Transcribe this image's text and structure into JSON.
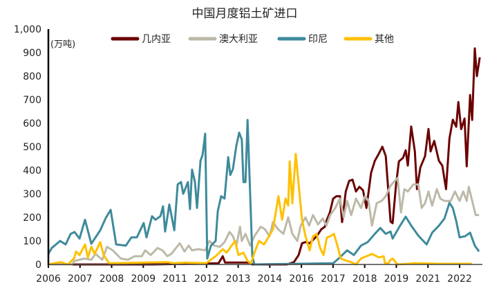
{
  "chart_data": {
    "type": "line",
    "title": "中国月度铝土矿进口",
    "unit_label": "(万吨)",
    "xlabel": "",
    "ylabel": "",
    "xlim": [
      2006.0,
      2022.58
    ],
    "ylim": [
      0,
      1000
    ],
    "y_ticks": [
      "0",
      "100",
      "200",
      "300",
      "400",
      "500",
      "600",
      "700",
      "800",
      "900",
      "1,000"
    ],
    "y_tick_values": [
      0,
      100,
      200,
      300,
      400,
      500,
      600,
      700,
      800,
      900,
      1000
    ],
    "x_tick_labels": [
      "2006",
      "2007",
      "2008",
      "2009",
      "2011",
      "2012",
      "2013",
      "2014",
      "2016",
      "2017",
      "2018",
      "2019",
      "2021",
      "2022"
    ],
    "grid": false,
    "legend_position": "top",
    "series": [
      {
        "name": "几内亚",
        "color": "#6b0000",
        "points": [
          [
            2006.0,
            0
          ],
          [
            2010.0,
            0
          ],
          [
            2012.5,
            5
          ],
          [
            2012.66,
            35
          ],
          [
            2012.75,
            8
          ],
          [
            2013.7,
            8
          ],
          [
            2013.8,
            0
          ],
          [
            2015.11,
            0
          ],
          [
            2015.38,
            10
          ],
          [
            2015.56,
            40
          ],
          [
            2015.69,
            90
          ],
          [
            2015.82,
            95
          ],
          [
            2015.98,
            90
          ],
          [
            2016.25,
            120
          ],
          [
            2016.43,
            150
          ],
          [
            2016.56,
            160
          ],
          [
            2016.64,
            190
          ],
          [
            2016.75,
            220
          ],
          [
            2016.88,
            280
          ],
          [
            2017.01,
            290
          ],
          [
            2017.14,
            290
          ],
          [
            2017.22,
            180
          ],
          [
            2017.36,
            310
          ],
          [
            2017.49,
            355
          ],
          [
            2017.62,
            360
          ],
          [
            2017.75,
            310
          ],
          [
            2017.88,
            330
          ],
          [
            2018.02,
            315
          ],
          [
            2018.15,
            240
          ],
          [
            2018.33,
            390
          ],
          [
            2018.47,
            440
          ],
          [
            2018.62,
            470
          ],
          [
            2018.76,
            500
          ],
          [
            2018.89,
            460
          ],
          [
            2019.07,
            182
          ],
          [
            2019.15,
            175
          ],
          [
            2019.28,
            338
          ],
          [
            2019.39,
            438
          ],
          [
            2019.55,
            453
          ],
          [
            2019.65,
            485
          ],
          [
            2019.73,
            420
          ],
          [
            2019.86,
            586
          ],
          [
            2020.0,
            480
          ],
          [
            2020.08,
            320
          ],
          [
            2020.21,
            412
          ],
          [
            2020.39,
            460
          ],
          [
            2020.52,
            576
          ],
          [
            2020.6,
            480
          ],
          [
            2020.74,
            525
          ],
          [
            2020.92,
            440
          ],
          [
            2021.05,
            420
          ],
          [
            2021.19,
            320
          ],
          [
            2021.32,
            535
          ],
          [
            2021.45,
            615
          ],
          [
            2021.58,
            585
          ],
          [
            2021.66,
            690
          ],
          [
            2021.77,
            575
          ],
          [
            2021.9,
            620
          ],
          [
            2021.98,
            417
          ],
          [
            2022.11,
            720
          ],
          [
            2022.19,
            614
          ],
          [
            2022.29,
            918
          ],
          [
            2022.37,
            800
          ],
          [
            2022.48,
            880
          ]
        ]
      },
      {
        "name": "澳大利亚",
        "color": "#bcb9a8",
        "points": [
          [
            2006.0,
            0
          ],
          [
            2006.9,
            0
          ],
          [
            2007.0,
            15
          ],
          [
            2007.37,
            25
          ],
          [
            2007.64,
            20
          ],
          [
            2007.8,
            45
          ],
          [
            2008.06,
            20
          ],
          [
            2008.24,
            75
          ],
          [
            2008.46,
            60
          ],
          [
            2008.77,
            25
          ],
          [
            2009.04,
            20
          ],
          [
            2009.3,
            35
          ],
          [
            2009.57,
            35
          ],
          [
            2009.7,
            60
          ],
          [
            2009.91,
            40
          ],
          [
            2010.17,
            70
          ],
          [
            2010.36,
            60
          ],
          [
            2010.54,
            35
          ],
          [
            2010.7,
            45
          ],
          [
            2011.02,
            90
          ],
          [
            2011.2,
            55
          ],
          [
            2011.36,
            80
          ],
          [
            2011.49,
            60
          ],
          [
            2011.73,
            65
          ],
          [
            2011.99,
            60
          ],
          [
            2012.15,
            100
          ],
          [
            2012.34,
            80
          ],
          [
            2012.55,
            75
          ],
          [
            2012.73,
            95
          ],
          [
            2012.92,
            138
          ],
          [
            2013.05,
            120
          ],
          [
            2013.18,
            80
          ],
          [
            2013.32,
            160
          ],
          [
            2013.39,
            100
          ],
          [
            2013.53,
            130
          ],
          [
            2013.71,
            80
          ],
          [
            2013.87,
            120
          ],
          [
            2014.11,
            160
          ],
          [
            2014.27,
            150
          ],
          [
            2014.45,
            120
          ],
          [
            2014.58,
            180
          ],
          [
            2014.77,
            150
          ],
          [
            2014.98,
            130
          ],
          [
            2015.16,
            200
          ],
          [
            2015.32,
            130
          ],
          [
            2015.51,
            100
          ],
          [
            2015.64,
            165
          ],
          [
            2015.82,
            200
          ],
          [
            2015.96,
            165
          ],
          [
            2016.11,
            210
          ],
          [
            2016.3,
            170
          ],
          [
            2016.48,
            195
          ],
          [
            2016.62,
            165
          ],
          [
            2016.77,
            210
          ],
          [
            2016.96,
            240
          ],
          [
            2017.14,
            280
          ],
          [
            2017.28,
            200
          ],
          [
            2017.41,
            270
          ],
          [
            2017.57,
            210
          ],
          [
            2017.75,
            280
          ],
          [
            2017.94,
            240
          ],
          [
            2018.1,
            290
          ],
          [
            2018.23,
            270
          ],
          [
            2018.36,
            165
          ],
          [
            2018.54,
            260
          ],
          [
            2018.73,
            270
          ],
          [
            2018.89,
            290
          ],
          [
            2019.07,
            335
          ],
          [
            2019.34,
            368
          ],
          [
            2019.47,
            221
          ],
          [
            2019.6,
            320
          ],
          [
            2019.73,
            310
          ],
          [
            2019.94,
            340
          ],
          [
            2020.13,
            340
          ],
          [
            2020.26,
            240
          ],
          [
            2020.39,
            260
          ],
          [
            2020.52,
            310
          ],
          [
            2020.66,
            250
          ],
          [
            2020.84,
            320
          ],
          [
            2020.97,
            280
          ],
          [
            2021.13,
            270
          ],
          [
            2021.37,
            270
          ],
          [
            2021.53,
            310
          ],
          [
            2021.71,
            270
          ],
          [
            2021.85,
            310
          ],
          [
            2021.98,
            270
          ],
          [
            2022.06,
            330
          ],
          [
            2022.19,
            270
          ],
          [
            2022.32,
            210
          ],
          [
            2022.45,
            210
          ]
        ]
      },
      {
        "name": "印尼",
        "color": "#3e8a9b",
        "points": [
          [
            2006.0,
            45
          ],
          [
            2006.13,
            70
          ],
          [
            2006.45,
            100
          ],
          [
            2006.66,
            85
          ],
          [
            2006.85,
            130
          ],
          [
            2007.0,
            138
          ],
          [
            2007.19,
            110
          ],
          [
            2007.4,
            190
          ],
          [
            2007.64,
            88
          ],
          [
            2007.8,
            115
          ],
          [
            2007.98,
            145
          ],
          [
            2008.19,
            197
          ],
          [
            2008.38,
            232
          ],
          [
            2008.59,
            85
          ],
          [
            2008.96,
            80
          ],
          [
            2009.17,
            115
          ],
          [
            2009.38,
            115
          ],
          [
            2009.64,
            176
          ],
          [
            2009.75,
            115
          ],
          [
            2009.96,
            205
          ],
          [
            2010.09,
            190
          ],
          [
            2010.28,
            205
          ],
          [
            2010.38,
            247
          ],
          [
            2010.46,
            140
          ],
          [
            2010.62,
            255
          ],
          [
            2010.81,
            145
          ],
          [
            2010.94,
            340
          ],
          [
            2011.07,
            350
          ],
          [
            2011.15,
            300
          ],
          [
            2011.33,
            350
          ],
          [
            2011.41,
            235
          ],
          [
            2011.49,
            403
          ],
          [
            2011.6,
            350
          ],
          [
            2011.68,
            240
          ],
          [
            2011.81,
            440
          ],
          [
            2011.89,
            465
          ],
          [
            2011.99,
            556
          ],
          [
            2012.07,
            25
          ],
          [
            2012.21,
            80
          ],
          [
            2012.39,
            100
          ],
          [
            2012.47,
            226
          ],
          [
            2012.6,
            290
          ],
          [
            2012.73,
            280
          ],
          [
            2012.87,
            456
          ],
          [
            2012.95,
            380
          ],
          [
            2013.05,
            405
          ],
          [
            2013.18,
            505
          ],
          [
            2013.29,
            560
          ],
          [
            2013.39,
            530
          ],
          [
            2013.45,
            350
          ],
          [
            2013.53,
            350
          ],
          [
            2013.61,
            614
          ],
          [
            2013.79,
            35
          ],
          [
            2013.87,
            0
          ],
          [
            2016.88,
            5
          ],
          [
            2017.14,
            30
          ],
          [
            2017.41,
            60
          ],
          [
            2017.67,
            40
          ],
          [
            2017.94,
            80
          ],
          [
            2018.2,
            95
          ],
          [
            2018.47,
            130
          ],
          [
            2018.68,
            155
          ],
          [
            2018.89,
            130
          ],
          [
            2019.07,
            140
          ],
          [
            2019.15,
            110
          ],
          [
            2019.42,
            162
          ],
          [
            2019.65,
            203
          ],
          [
            2019.86,
            165
          ],
          [
            2020.13,
            123
          ],
          [
            2020.45,
            85
          ],
          [
            2020.66,
            135
          ],
          [
            2020.92,
            165
          ],
          [
            2021.13,
            195
          ],
          [
            2021.32,
            262
          ],
          [
            2021.45,
            240
          ],
          [
            2021.58,
            185
          ],
          [
            2021.71,
            115
          ],
          [
            2021.92,
            120
          ],
          [
            2022.11,
            135
          ],
          [
            2022.29,
            80
          ],
          [
            2022.45,
            55
          ]
        ]
      },
      {
        "name": "其他",
        "color": "#ffc000",
        "points": [
          [
            2006.0,
            0
          ],
          [
            2006.21,
            5
          ],
          [
            2006.48,
            10
          ],
          [
            2006.74,
            0
          ],
          [
            2006.98,
            25
          ],
          [
            2007.06,
            55
          ],
          [
            2007.19,
            40
          ],
          [
            2007.4,
            85
          ],
          [
            2007.51,
            30
          ],
          [
            2007.64,
            75
          ],
          [
            2007.77,
            45
          ],
          [
            2007.98,
            95
          ],
          [
            2008.11,
            40
          ],
          [
            2008.32,
            5
          ],
          [
            2010.54,
            10
          ],
          [
            2010.81,
            5
          ],
          [
            2011.23,
            8
          ],
          [
            2012.02,
            5
          ],
          [
            2012.39,
            35
          ],
          [
            2012.66,
            65
          ],
          [
            2012.81,
            50
          ],
          [
            2013.0,
            80
          ],
          [
            2013.13,
            100
          ],
          [
            2013.26,
            40
          ],
          [
            2013.45,
            50
          ],
          [
            2013.61,
            15
          ],
          [
            2013.74,
            5
          ],
          [
            2013.87,
            50
          ],
          [
            2014.05,
            100
          ],
          [
            2014.24,
            85
          ],
          [
            2014.4,
            115
          ],
          [
            2014.58,
            150
          ],
          [
            2014.79,
            290
          ],
          [
            2014.93,
            190
          ],
          [
            2015.06,
            280
          ],
          [
            2015.16,
            250
          ],
          [
            2015.22,
            438
          ],
          [
            2015.32,
            260
          ],
          [
            2015.45,
            470
          ],
          [
            2015.56,
            340
          ],
          [
            2015.69,
            190
          ],
          [
            2015.82,
            120
          ],
          [
            2015.98,
            60
          ],
          [
            2016.11,
            120
          ],
          [
            2016.25,
            130
          ],
          [
            2016.38,
            70
          ],
          [
            2016.51,
            40
          ],
          [
            2016.64,
            115
          ],
          [
            2016.77,
            120
          ],
          [
            2016.91,
            130
          ],
          [
            2017.04,
            80
          ],
          [
            2017.17,
            25
          ],
          [
            2017.41,
            15
          ],
          [
            2017.57,
            10
          ],
          [
            2017.75,
            0
          ],
          [
            2017.94,
            25
          ],
          [
            2018.15,
            35
          ],
          [
            2018.36,
            45
          ],
          [
            2018.62,
            30
          ],
          [
            2018.86,
            5
          ],
          [
            2019.07,
            20
          ],
          [
            2018.81,
            35
          ],
          [
            2018.99,
            5
          ],
          [
            2019.15,
            25
          ],
          [
            2019.34,
            0
          ],
          [
            2020.0,
            5
          ],
          [
            2021.0,
            3
          ],
          [
            2022.19,
            3
          ]
        ]
      }
    ]
  }
}
